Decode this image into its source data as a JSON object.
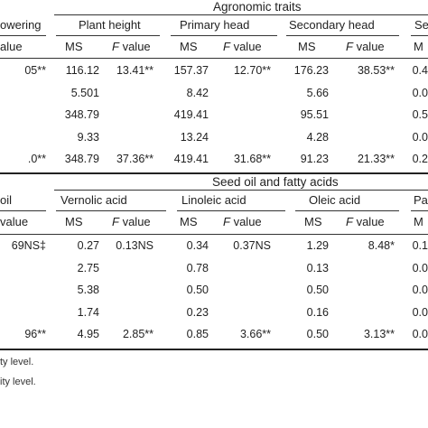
{
  "table1": {
    "group_title": "Agronomic traits",
    "headers": {
      "flowering": "owering",
      "plant_height": "Plant height",
      "primary_head": "Primary head",
      "secondary_head": "Secondary head",
      "cutoff": "Se"
    },
    "sub": {
      "value": "alue",
      "ms": "MS",
      "f": "F",
      "value_word": "value",
      "ms_cut": "M"
    },
    "rows": [
      {
        "c0": "05**",
        "c1": "116.12",
        "c2": "13.41**",
        "c3": "157.37",
        "c4": "12.70**",
        "c5": "176.23",
        "c6": "38.53**",
        "c7": "0.4"
      },
      {
        "c0": "",
        "c1": "5.501",
        "c2": "",
        "c3": "8.42",
        "c4": "",
        "c5": "5.66",
        "c6": "",
        "c7": "0.0"
      },
      {
        "c0": "",
        "c1": "348.79",
        "c2": "",
        "c3": "419.41",
        "c4": "",
        "c5": "95.51",
        "c6": "",
        "c7": "0.5"
      },
      {
        "c0": "",
        "c1": "9.33",
        "c2": "",
        "c3": "13.24",
        "c4": "",
        "c5": "4.28",
        "c6": "",
        "c7": "0.0"
      },
      {
        "c0": ".0**",
        "c1": "348.79",
        "c2": "37.36**",
        "c3": "419.41",
        "c4": "31.68**",
        "c5": "91.23",
        "c6": "21.33**",
        "c7": "0.2"
      }
    ]
  },
  "table2": {
    "group_title": "Seed oil and fatty acids",
    "headers": {
      "oil": "oil",
      "vernolic": "Vernolic acid",
      "linoleic": "Linoleic acid",
      "oleic": "Oleic acid",
      "cutoff": "Pa"
    },
    "sub": {
      "value": "value",
      "ms": "MS",
      "f": "F",
      "value_word": "value",
      "ms_cut": "M"
    },
    "rows": [
      {
        "c0": "69NS‡",
        "c1": "0.27",
        "c2": "0.13NS",
        "c3": "0.34",
        "c4": "0.37NS",
        "c5": "1.29",
        "c6": "8.48*",
        "c7": "0.1"
      },
      {
        "c0": "",
        "c1": "2.75",
        "c2": "",
        "c3": "0.78",
        "c4": "",
        "c5": "0.13",
        "c6": "",
        "c7": "0.0"
      },
      {
        "c0": "",
        "c1": "5.38",
        "c2": "",
        "c3": "0.50",
        "c4": "",
        "c5": "0.50",
        "c6": "",
        "c7": "0.0"
      },
      {
        "c0": "",
        "c1": "1.74",
        "c2": "",
        "c3": "0.23",
        "c4": "",
        "c5": "0.16",
        "c6": "",
        "c7": "0.0"
      },
      {
        "c0": "96**",
        "c1": "4.95",
        "c2": "2.85**",
        "c3": "0.85",
        "c4": "3.66**",
        "c5": "0.50",
        "c6": "3.13**",
        "c7": "0.0"
      }
    ]
  },
  "notes": {
    "line1": "ty level.",
    "line2": "ity level."
  }
}
